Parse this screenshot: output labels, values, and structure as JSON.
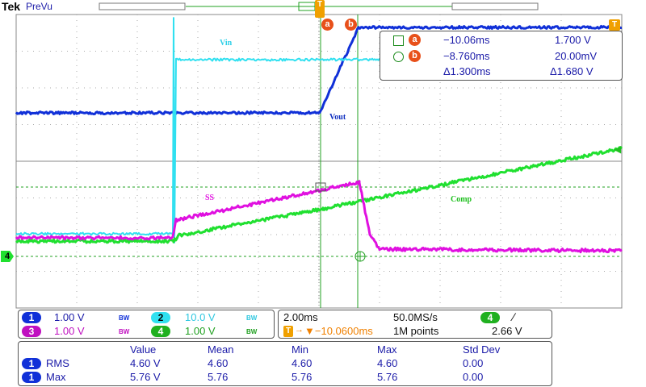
{
  "header": {
    "brand": "Tek",
    "mode": "PreVu"
  },
  "colors": {
    "ch1": "#1030d8",
    "ch2": "#30e0f0",
    "ch3": "#e010e0",
    "ch4": "#20e030",
    "marker": "#e8501a",
    "text": "#1a1aa8"
  },
  "waveform_labels": {
    "vin": "Vin",
    "vout": "Vout",
    "ss": "SS",
    "comp": "Comp"
  },
  "cursors": {
    "a": {
      "name": "a",
      "time": "−10.06ms",
      "value": "1.700 V"
    },
    "b": {
      "name": "b",
      "time": "−8.760ms",
      "value": "20.00mV"
    },
    "delta_time": "Δ1.300ms",
    "delta_value": "Δ1.680 V"
  },
  "channels": [
    {
      "num": "1",
      "scale": "1.00 V",
      "bw": "BW"
    },
    {
      "num": "2",
      "scale": "10.0 V",
      "bw": "BW"
    },
    {
      "num": "3",
      "scale": "1.00 V",
      "bw": "BW"
    },
    {
      "num": "4",
      "scale": "1.00 V",
      "bw": "BW"
    }
  ],
  "timebase": {
    "scale": "2.00ms",
    "sample_rate": "50.0MS/s",
    "trigger_channel": "4",
    "trigger_slope_icon": "rising-edge-icon",
    "trigger_slope_glyph": "∕",
    "trigger_position": "▼−10.0600ms",
    "record_length": "1M points",
    "trigger_level": "2.66 V"
  },
  "measurements": {
    "headers": [
      "Value",
      "Mean",
      "Min",
      "Max",
      "Std Dev"
    ],
    "rows": [
      {
        "channel": "1",
        "name": "RMS",
        "values": [
          "4.60 V",
          "4.60",
          "4.60",
          "4.60",
          "0.00"
        ]
      },
      {
        "channel": "1",
        "name": "Max",
        "values": [
          "5.76 V",
          "5.76",
          "5.76",
          "5.76",
          "0.00"
        ]
      }
    ]
  },
  "markers": {
    "trigger": "T",
    "ground4": "4",
    "level4": "◀"
  }
}
